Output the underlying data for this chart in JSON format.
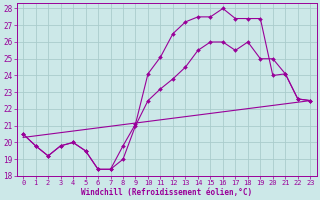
{
  "xlabel": "Windchill (Refroidissement éolien,°C)",
  "background_color": "#cce8e8",
  "grid_color": "#aacccc",
  "line_color": "#990099",
  "xlim": [
    -0.5,
    23.5
  ],
  "ylim": [
    18,
    28.3
  ],
  "yticks": [
    18,
    19,
    20,
    21,
    22,
    23,
    24,
    25,
    26,
    27,
    28
  ],
  "xticks": [
    0,
    1,
    2,
    3,
    4,
    5,
    6,
    7,
    8,
    9,
    10,
    11,
    12,
    13,
    14,
    15,
    16,
    17,
    18,
    19,
    20,
    21,
    22,
    23
  ],
  "line1_x": [
    0,
    1,
    2,
    3,
    4,
    5,
    6,
    7,
    8,
    9,
    10,
    11,
    12,
    13,
    14,
    15,
    16,
    17,
    18,
    19,
    20,
    21,
    22,
    23
  ],
  "line1_y": [
    20.5,
    19.8,
    19.2,
    19.8,
    20.0,
    19.5,
    18.4,
    18.4,
    19.8,
    21.1,
    24.1,
    25.1,
    26.5,
    27.2,
    27.5,
    27.5,
    28.0,
    27.4,
    27.4,
    27.4,
    24.0,
    24.1,
    22.6,
    22.5
  ],
  "line2_x": [
    0,
    1,
    2,
    3,
    4,
    5,
    6,
    7,
    8,
    9,
    10,
    11,
    12,
    13,
    14,
    15,
    16,
    17,
    18,
    19,
    20,
    21,
    22,
    23
  ],
  "line2_y": [
    20.5,
    19.8,
    19.2,
    19.8,
    20.0,
    19.5,
    18.4,
    18.4,
    19.0,
    21.0,
    22.5,
    23.2,
    23.8,
    24.5,
    25.5,
    26.0,
    26.0,
    25.5,
    26.0,
    25.0,
    25.0,
    24.1,
    22.6,
    22.5
  ],
  "line3_x": [
    0,
    23
  ],
  "line3_y": [
    20.3,
    22.5
  ]
}
